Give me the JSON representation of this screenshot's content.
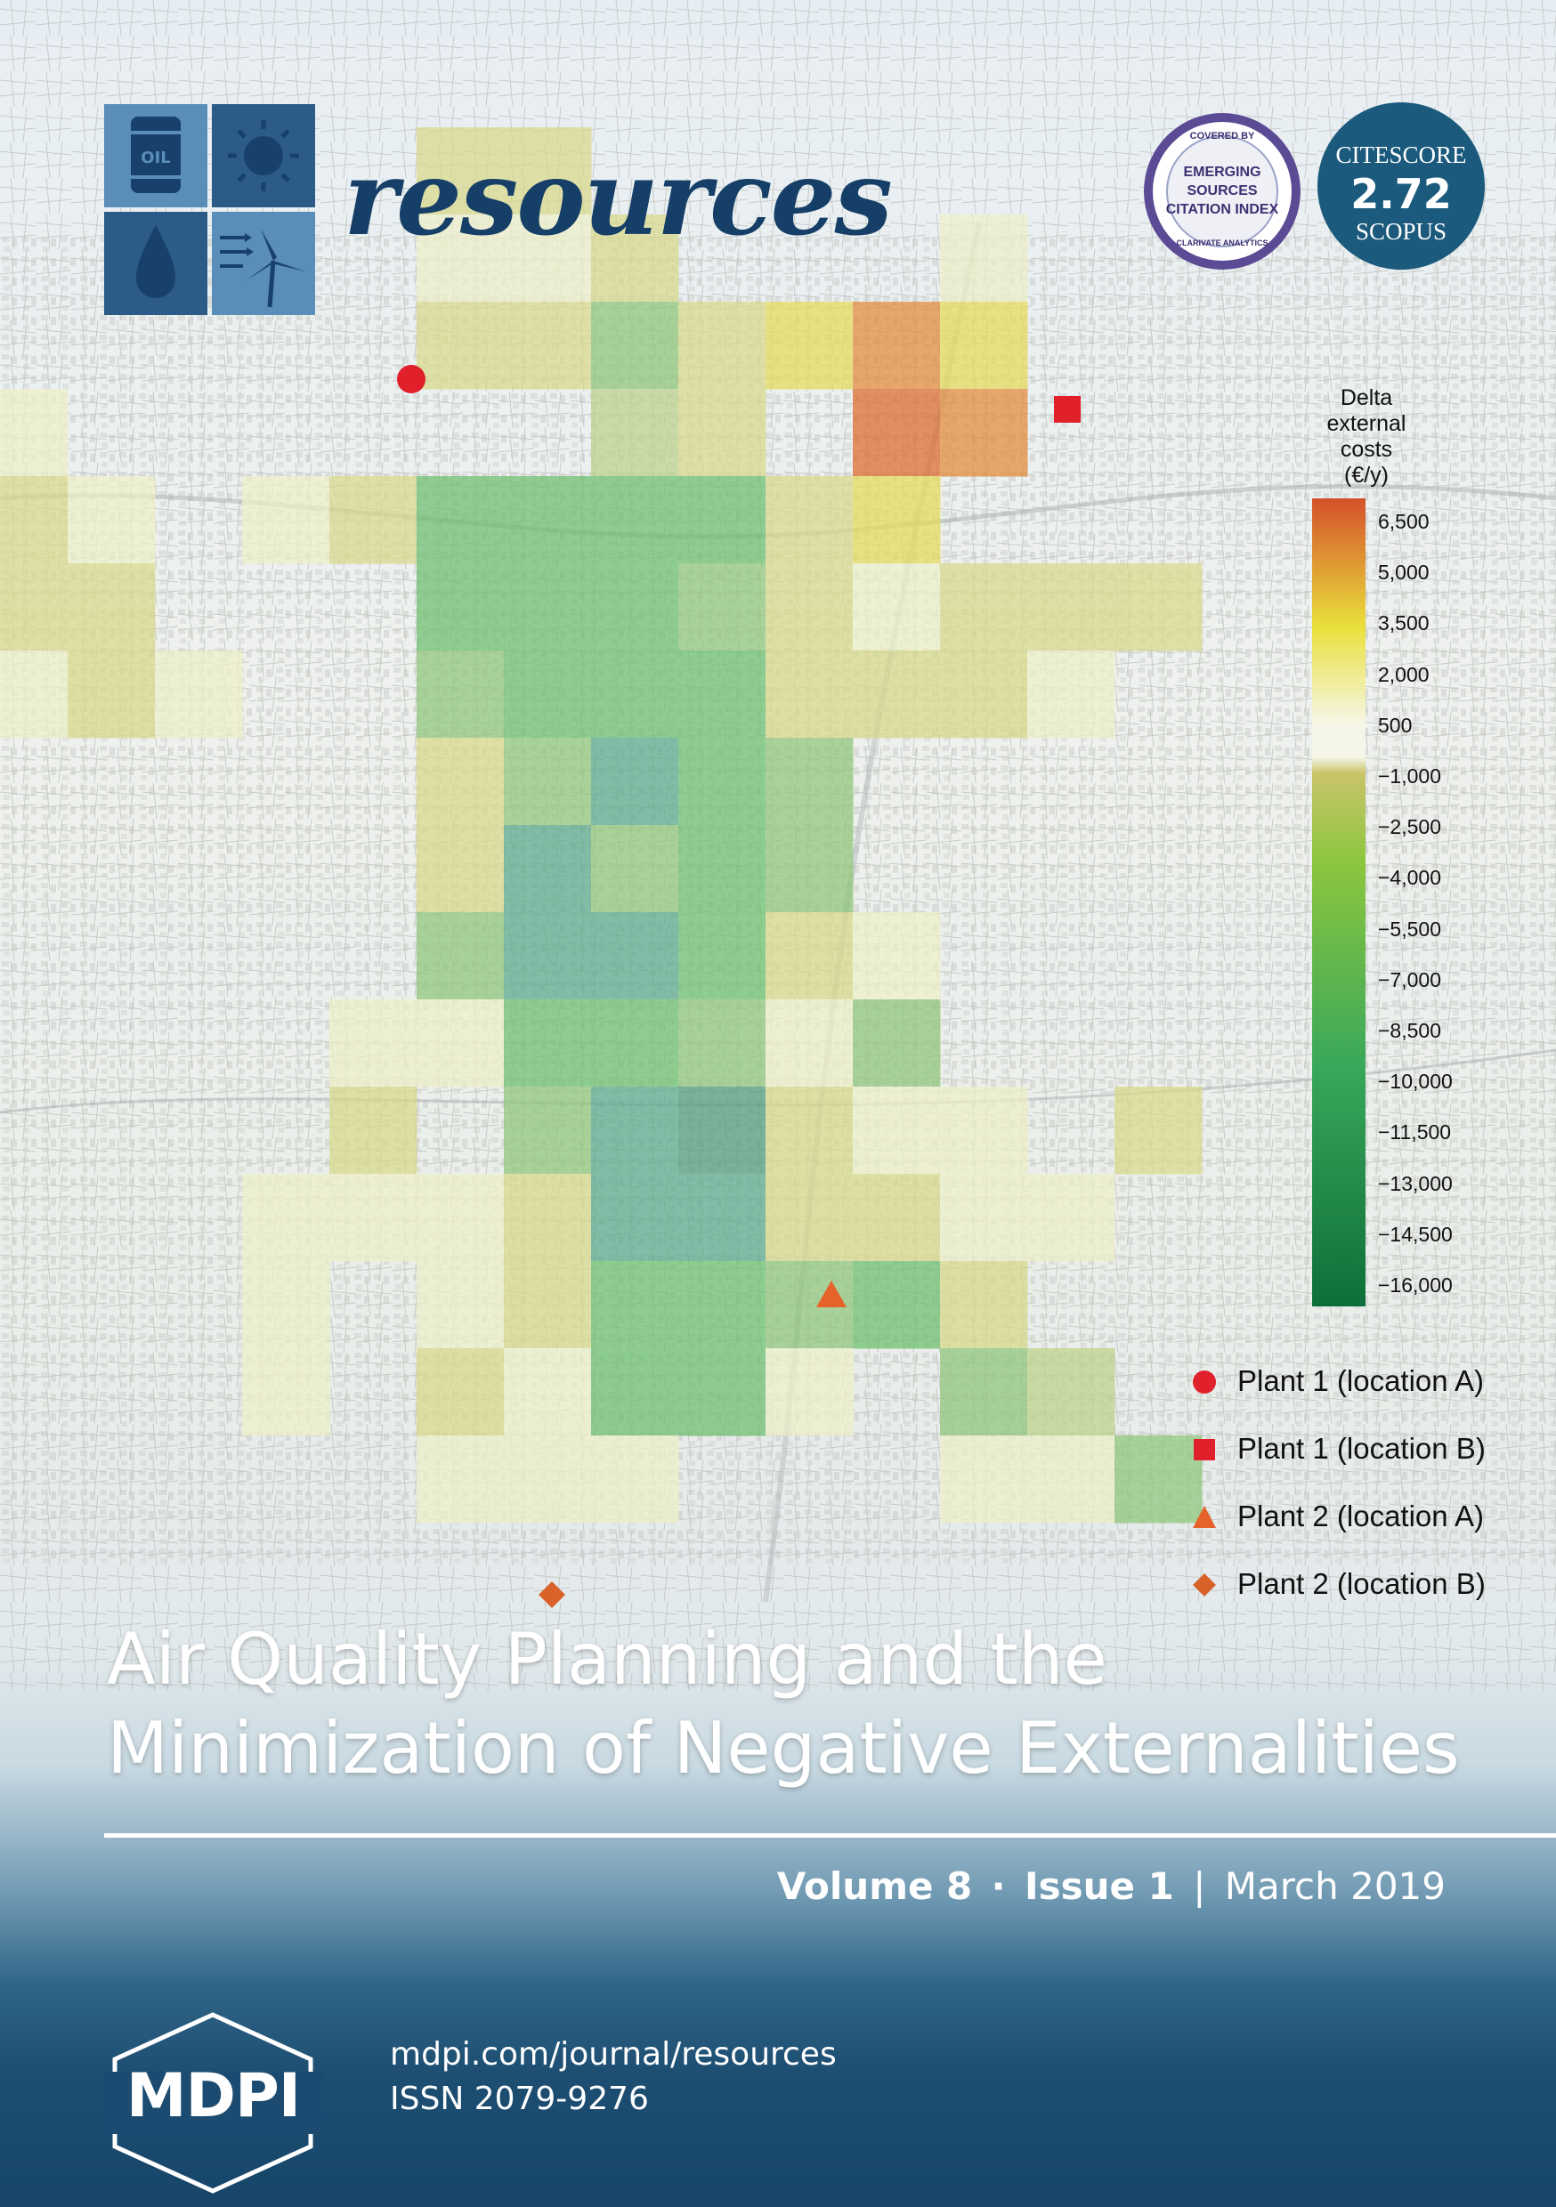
{
  "journal": {
    "name": "resources",
    "logo_icons": [
      "oil-barrel-icon",
      "sun-icon",
      "water-drop-icon",
      "wind-turbine-icon"
    ],
    "logo_barrel_text": "OIL",
    "brand_color": "#163f68"
  },
  "badges": {
    "esci": {
      "top_text": "COVERED BY",
      "lines": [
        "EMERGING",
        "SOURCES",
        "CITATION INDEX"
      ],
      "bottom_text": "CLARIVATE ANALYTICS"
    },
    "citescore": {
      "label": "CITESCORE",
      "value": "2.72",
      "source": "SCOPUS"
    }
  },
  "map_legend": {
    "title_lines": [
      "Delta",
      "external",
      "costs",
      "(€/y)"
    ],
    "ticks": [
      "6,500",
      "5,000",
      "3,500",
      "2,000",
      "500",
      "−1,000",
      "−2,500",
      "−4,000",
      "−5,500",
      "−7,000",
      "−8,500",
      "−10,000",
      "−11,500",
      "−13,000",
      "−14,500",
      "−16,000"
    ],
    "colors": {
      "max": "#d4502a",
      "high": "#e9e13c",
      "zero": "#f6f6e8",
      "mid_negative": "#8cc63e",
      "low": "#3aa85a",
      "min": "#0e6e3a"
    }
  },
  "plants_key": [
    {
      "label": "Plant 1 (location A)",
      "marker": "circle",
      "color": "#e0202a"
    },
    {
      "label": "Plant 1 (location B)",
      "marker": "square",
      "color": "#e0202a"
    },
    {
      "label": "Plant 2 (location A)",
      "marker": "triangle",
      "color": "#e5622a"
    },
    {
      "label": "Plant 2 (location B)",
      "marker": "diamond",
      "color": "#d9622a"
    }
  ],
  "article": {
    "title_lines": [
      "Air Quality Planning and the",
      "Minimization of Negative Externalities"
    ]
  },
  "issue": {
    "volume": "Volume 8",
    "dot": "·",
    "issue": "Issue 1",
    "separator": "|",
    "date": "March 2019"
  },
  "publisher": {
    "logo_text": "MDPI",
    "url": "mdpi.com/journal/resources",
    "issn": "ISSN 2079-9276"
  }
}
